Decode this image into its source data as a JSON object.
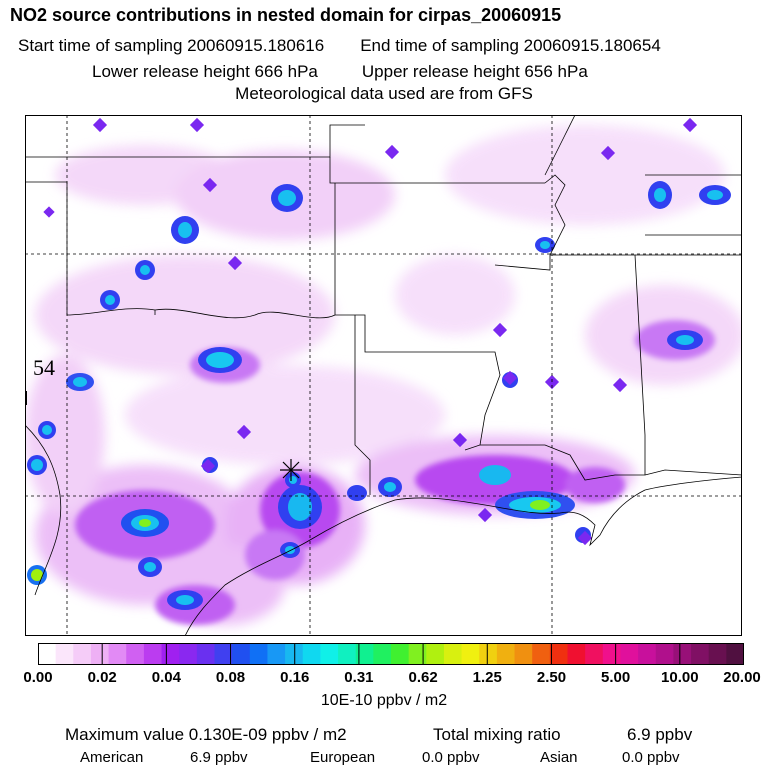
{
  "header": {
    "title": "NO2 source contributions in nested domain for cirpas_20060915",
    "start_time": "Start time of sampling 20060915.180616",
    "end_time": "End time of sampling 20060915.180654",
    "lower_release": "Lower release height  666 hPa",
    "upper_release": "Upper release height  656 hPa",
    "met_data": "Meteorological data used are from GFS"
  },
  "map": {
    "marker_label": "54",
    "receptor_marker": "star-marker"
  },
  "colorbar": {
    "units": "10E-10 ppbv / m2",
    "tick_labels": [
      "0.00",
      "0.02",
      "0.04",
      "0.08",
      "0.16",
      "0.31",
      "0.62",
      "1.25",
      "2.50",
      "5.00",
      "10.00",
      "20.00"
    ],
    "colors": [
      "#ffffff",
      "#fbe6fb",
      "#f5ccf8",
      "#eeb0f5",
      "#e28af5",
      "#d060f2",
      "#bb3cf0",
      "#a020f0",
      "#8a28f0",
      "#6a30f0",
      "#4040f0",
      "#2050f0",
      "#1070f5",
      "#1898f5",
      "#18b8f0",
      "#10d8f0",
      "#10f0e8",
      "#10f0c0",
      "#10f090",
      "#20f060",
      "#40f030",
      "#80f020",
      "#b0f010",
      "#d8f010",
      "#f0f010",
      "#f0d010",
      "#f0b010",
      "#f09010",
      "#f06010",
      "#f03010",
      "#f01030",
      "#f01060",
      "#f0108c",
      "#e0109c",
      "#c8109c",
      "#b0108c",
      "#981078",
      "#801064",
      "#681050",
      "#501040"
    ]
  },
  "footer": {
    "max_label": "Maximum value  0.130E-09 ppbv / m2",
    "total_label": "Total mixing ratio",
    "total_value": "6.9 ppbv",
    "american_label": "American",
    "american_value": "6.9 ppbv",
    "european_label": "European",
    "european_value": "0.0 ppbv",
    "asian_label": "Asian",
    "asian_value": "0.0 ppbv"
  }
}
